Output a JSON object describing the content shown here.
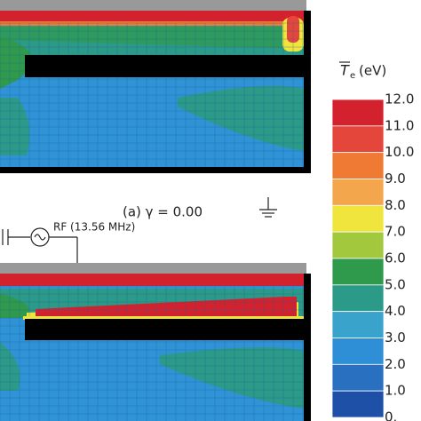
{
  "figure": {
    "colorbar": {
      "symbol": "T",
      "subscript": "e",
      "unit": "(eV)",
      "labels": [
        "12.0",
        "11.0",
        "10.0",
        "9.0",
        "8.0",
        "7.0",
        "6.0",
        "5.0",
        "4.0",
        "3.0",
        "2.0",
        "1.0",
        "0."
      ],
      "colors": [
        "#d3222e",
        "#e4463c",
        "#ee7a34",
        "#f4a64c",
        "#efe53c",
        "#a2c83e",
        "#2f9a4c",
        "#2c9a88",
        "#3aa3cc",
        "#2f8fd6",
        "#2a70c0",
        "#1f50a8"
      ]
    },
    "caption_a": "(a) γ = 0.00",
    "source_label": "RF (13.56 MHz)"
  }
}
